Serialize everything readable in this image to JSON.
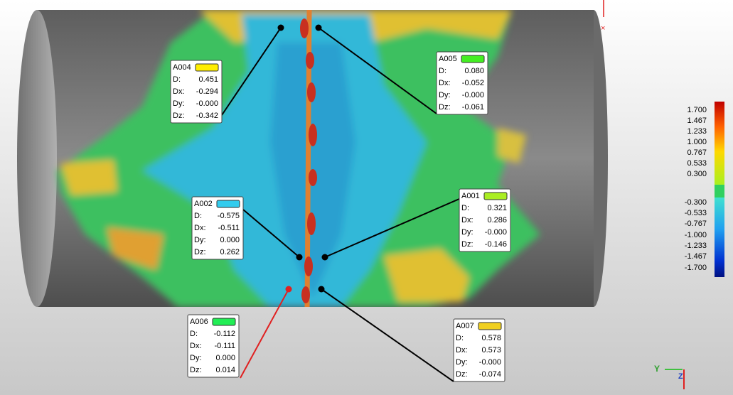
{
  "annotations": [
    {
      "id": "A004",
      "color": "#ffee00",
      "rows": [
        {
          "label": "D:",
          "value": "0.451"
        },
        {
          "label": "Dx:",
          "value": "-0.294"
        },
        {
          "label": "Dy:",
          "value": "-0.000"
        },
        {
          "label": "Dz:",
          "value": "-0.342"
        }
      ]
    },
    {
      "id": "A005",
      "color": "#44ee22",
      "rows": [
        {
          "label": "D:",
          "value": "0.080"
        },
        {
          "label": "Dx:",
          "value": "-0.052"
        },
        {
          "label": "Dy:",
          "value": "-0.000"
        },
        {
          "label": "Dz:",
          "value": "-0.061"
        }
      ]
    },
    {
      "id": "A002",
      "color": "#33ccee",
      "rows": [
        {
          "label": "D:",
          "value": "-0.575"
        },
        {
          "label": "Dx:",
          "value": "-0.511"
        },
        {
          "label": "Dy:",
          "value": "0.000"
        },
        {
          "label": "Dz:",
          "value": "0.262"
        }
      ]
    },
    {
      "id": "A001",
      "color": "#aaee22",
      "rows": [
        {
          "label": "D:",
          "value": "0.321"
        },
        {
          "label": "Dx:",
          "value": "0.286"
        },
        {
          "label": "Dy:",
          "value": "-0.000"
        },
        {
          "label": "Dz:",
          "value": "-0.146"
        }
      ]
    },
    {
      "id": "A006",
      "color": "#22ee55",
      "rows": [
        {
          "label": "D:",
          "value": "-0.112"
        },
        {
          "label": "Dx:",
          "value": "-0.111"
        },
        {
          "label": "Dy:",
          "value": "0.000"
        },
        {
          "label": "Dz:",
          "value": "0.014"
        }
      ]
    },
    {
      "id": "A007",
      "color": "#f0d020",
      "rows": [
        {
          "label": "D:",
          "value": "0.578"
        },
        {
          "label": "Dx:",
          "value": "0.573"
        },
        {
          "label": "Dy:",
          "value": "-0.000"
        },
        {
          "label": "Dz:",
          "value": "-0.074"
        }
      ]
    }
  ],
  "color_scale": {
    "labels": [
      "1.700",
      "1.467",
      "1.233",
      "1.000",
      "0.767",
      "0.533",
      "0.300",
      "-0.300",
      "-0.533",
      "-0.767",
      "-1.000",
      "-1.233",
      "-1.467",
      "-1.700"
    ]
  },
  "triad": {
    "y": "Y",
    "z": "Z"
  }
}
